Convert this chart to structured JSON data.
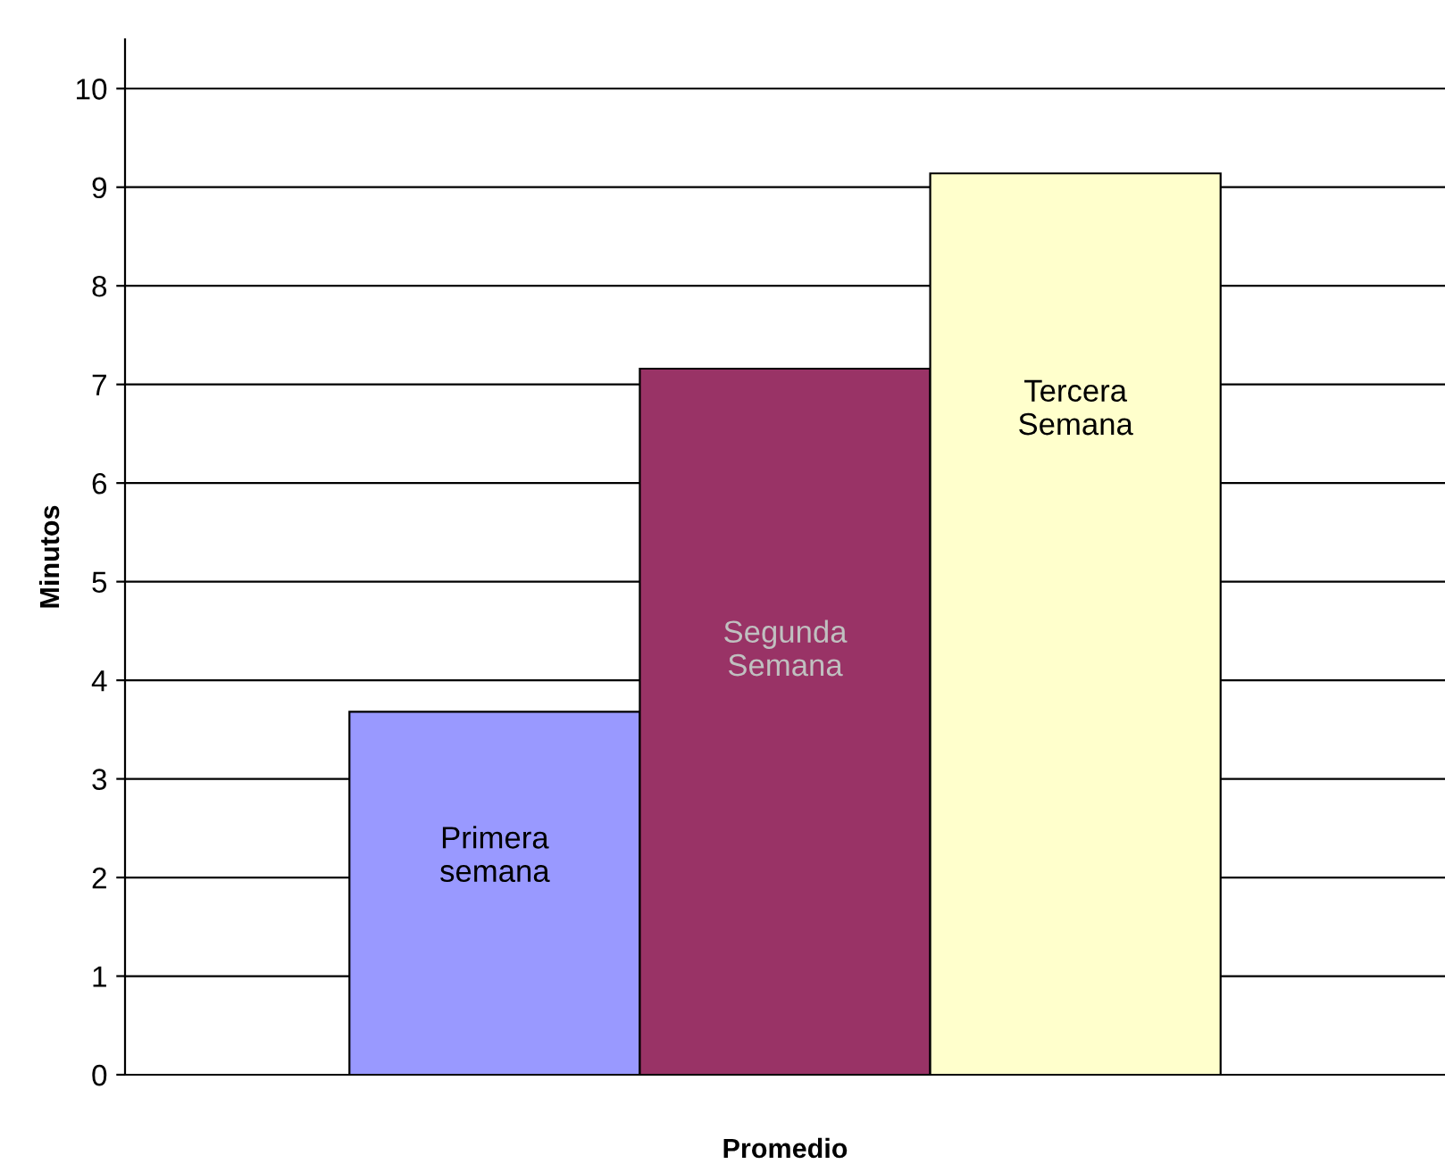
{
  "chart_data": {
    "type": "bar",
    "ylabel": "Minutos",
    "xlabel": "Promedio",
    "categories": [
      null
    ],
    "series": [
      {
        "name": "Primera semana",
        "color": "#9999ff",
        "values": [
          3.68
        ]
      },
      {
        "name": "Segunda Semana",
        "color": "#993366",
        "values": [
          7.16
        ]
      },
      {
        "name": "Tercera Semana",
        "color": "#ffffcc",
        "values": [
          9.14
        ]
      }
    ],
    "ylim": [
      0,
      10.5
    ],
    "yticks": [
      0,
      1,
      2,
      3,
      4,
      5,
      6,
      7,
      8,
      9,
      10
    ],
    "grid": "y"
  }
}
